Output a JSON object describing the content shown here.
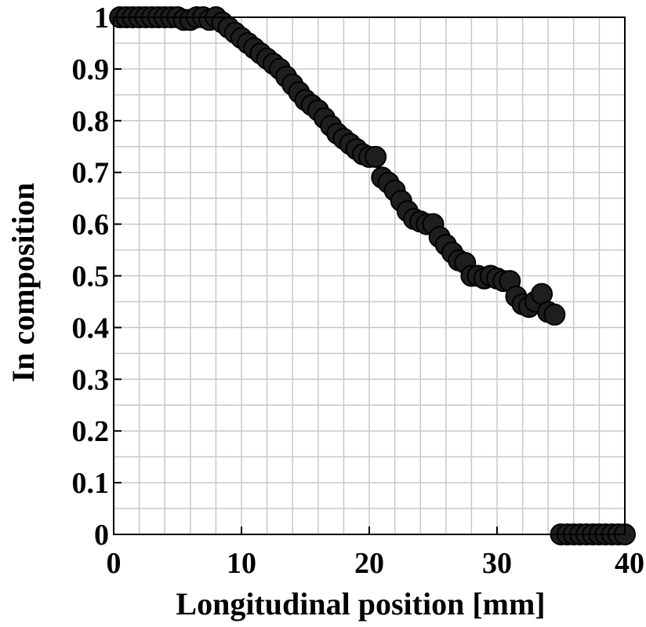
{
  "chart_data": {
    "type": "scatter",
    "title": "",
    "xlabel": "Longitudinal position [mm]",
    "ylabel": "In composition",
    "xlim": [
      0,
      40
    ],
    "ylim": [
      0,
      1
    ],
    "x_ticks": [
      "0",
      "10",
      "20",
      "30",
      "40"
    ],
    "y_ticks": [
      "0",
      "0.1",
      "0.2",
      "0.3",
      "0.4",
      "0.5",
      "0.6",
      "0.7",
      "0.8",
      "0.9",
      "1"
    ],
    "grid": true,
    "grid_minor_step_x": 2,
    "grid_minor_step_y": 0.05,
    "marker_color": "#1e1e1e",
    "grid_color": "#c8c8c8",
    "series": [
      {
        "points": [
          [
            0.5,
            1.0
          ],
          [
            1.0,
            1.0
          ],
          [
            1.5,
            1.0
          ],
          [
            2.0,
            1.0
          ],
          [
            2.5,
            1.0
          ],
          [
            3.0,
            1.0
          ],
          [
            3.5,
            1.0
          ],
          [
            4.0,
            1.0
          ],
          [
            4.5,
            1.0
          ],
          [
            5.0,
            1.0
          ],
          [
            5.5,
            0.995
          ],
          [
            6.0,
            0.995
          ],
          [
            6.5,
            1.0
          ],
          [
            7.0,
            1.0
          ],
          [
            7.5,
            0.995
          ],
          [
            8.0,
            1.0
          ],
          [
            8.5,
            0.99
          ],
          [
            9.0,
            0.98
          ],
          [
            9.5,
            0.97
          ],
          [
            10.0,
            0.96
          ],
          [
            10.5,
            0.95
          ],
          [
            11.0,
            0.94
          ],
          [
            11.5,
            0.93
          ],
          [
            12.0,
            0.92
          ],
          [
            12.5,
            0.91
          ],
          [
            13.0,
            0.9
          ],
          [
            13.5,
            0.885
          ],
          [
            14.0,
            0.87
          ],
          [
            14.5,
            0.855
          ],
          [
            15.0,
            0.84
          ],
          [
            15.5,
            0.83
          ],
          [
            16.0,
            0.82
          ],
          [
            16.5,
            0.805
          ],
          [
            17.0,
            0.79
          ],
          [
            17.5,
            0.775
          ],
          [
            18.0,
            0.765
          ],
          [
            18.5,
            0.755
          ],
          [
            19.0,
            0.745
          ],
          [
            19.5,
            0.735
          ],
          [
            20.0,
            0.73
          ],
          [
            20.5,
            0.73
          ],
          [
            21.0,
            0.69
          ],
          [
            21.5,
            0.68
          ],
          [
            22.0,
            0.665
          ],
          [
            22.5,
            0.645
          ],
          [
            23.0,
            0.625
          ],
          [
            23.5,
            0.61
          ],
          [
            24.0,
            0.605
          ],
          [
            24.5,
            0.6
          ],
          [
            25.0,
            0.6
          ],
          [
            25.5,
            0.575
          ],
          [
            26.0,
            0.56
          ],
          [
            26.5,
            0.545
          ],
          [
            27.0,
            0.53
          ],
          [
            27.5,
            0.525
          ],
          [
            28.0,
            0.5
          ],
          [
            28.5,
            0.5
          ],
          [
            29.0,
            0.495
          ],
          [
            29.5,
            0.5
          ],
          [
            30.0,
            0.495
          ],
          [
            30.5,
            0.49
          ],
          [
            31.0,
            0.49
          ],
          [
            31.5,
            0.46
          ],
          [
            32.0,
            0.445
          ],
          [
            32.5,
            0.44
          ],
          [
            33.0,
            0.45
          ],
          [
            33.5,
            0.465
          ],
          [
            34.0,
            0.43
          ],
          [
            34.5,
            0.425
          ],
          [
            35.0,
            0.0
          ],
          [
            35.5,
            0.0
          ],
          [
            36.0,
            0.0
          ],
          [
            36.5,
            0.0
          ],
          [
            37.0,
            0.0
          ],
          [
            37.5,
            0.0
          ],
          [
            38.0,
            0.0
          ],
          [
            38.5,
            0.0
          ],
          [
            39.0,
            0.0
          ],
          [
            39.5,
            0.0
          ],
          [
            40.0,
            0.0
          ]
        ]
      }
    ]
  }
}
